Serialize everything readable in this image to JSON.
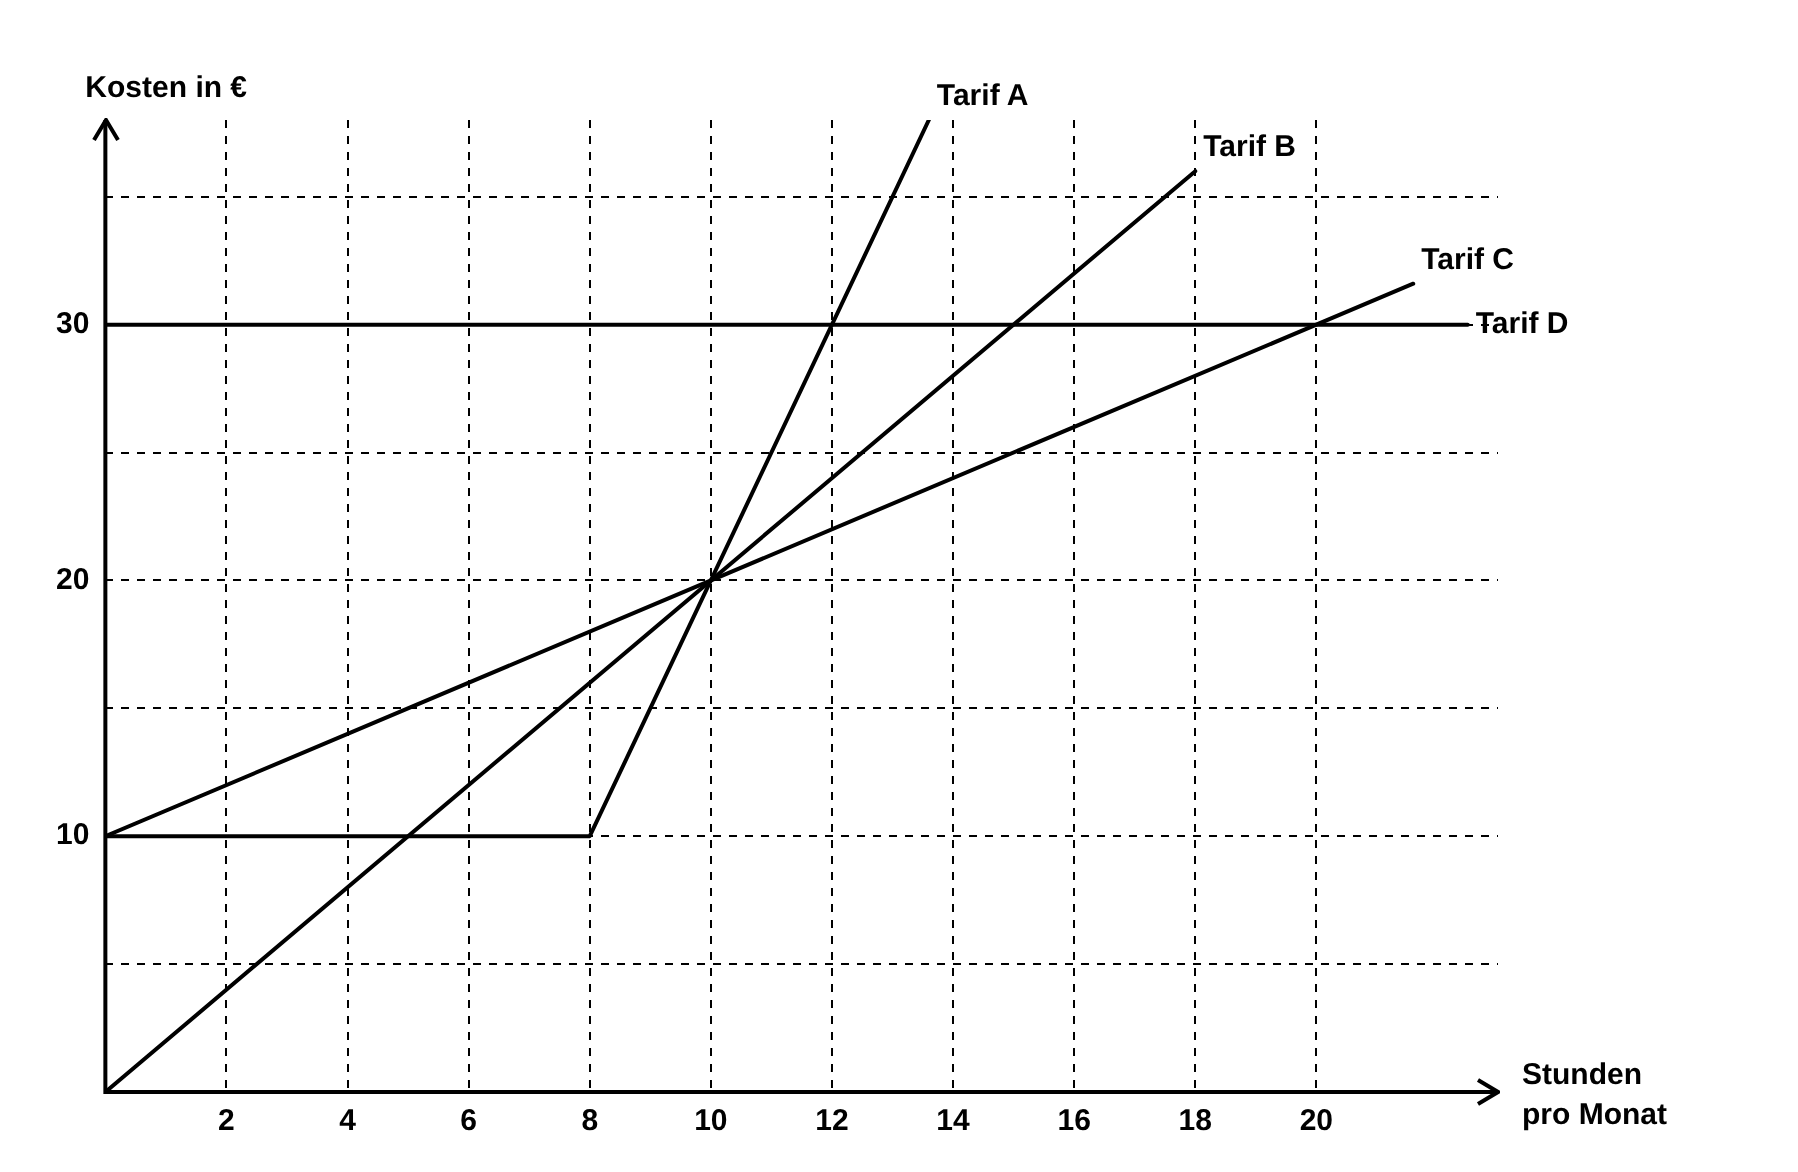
{
  "chart_data": {
    "type": "line",
    "xlabel": "Stunden pro Monat",
    "ylabel": "Kosten in €",
    "xlim": [
      0,
      23
    ],
    "ylim": [
      0,
      38
    ],
    "xticks": [
      2,
      4,
      6,
      8,
      10,
      12,
      14,
      16,
      18,
      20
    ],
    "yticks": [
      {
        "value": 5,
        "label": null
      },
      10,
      {
        "value": 15,
        "label": null
      },
      20,
      {
        "value": 25,
        "label": null
      },
      30,
      {
        "value": 35,
        "label": null
      }
    ],
    "grid": true,
    "legend": false,
    "marker": "none",
    "line_style": "solid",
    "series": [
      {
        "name": "Tarif A",
        "color": "#000000",
        "x": [
          0,
          8,
          10,
          13.6
        ],
        "values": [
          10,
          10,
          20,
          38
        ]
      },
      {
        "name": "Tarif B",
        "color": "#000000",
        "x": [
          0,
          18
        ],
        "values": [
          0,
          36
        ]
      },
      {
        "name": "Tarif C",
        "color": "#000000",
        "x": [
          0,
          21.6
        ],
        "values": [
          10,
          31.6
        ]
      },
      {
        "name": "Tarif D",
        "color": "#000000",
        "x": [
          0,
          22.5
        ],
        "values": [
          30,
          30
        ]
      }
    ]
  }
}
